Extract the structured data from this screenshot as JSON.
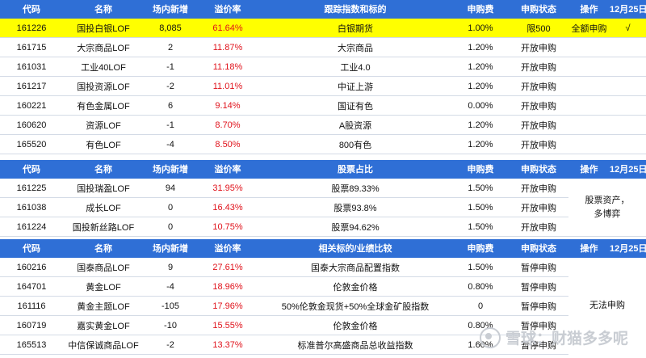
{
  "sections": [
    {
      "headers": [
        "代码",
        "名称",
        "场内新增",
        "溢价率",
        "跟踪指数和标的",
        "申购费",
        "申购状态",
        "操作",
        "12月25日"
      ],
      "rows": [
        {
          "code": "161226",
          "name": "国投白银LOF",
          "add": "8,085",
          "premium": "61.64%",
          "track": "白银期货",
          "fee": "1.00%",
          "status": "限500",
          "op": "全额申购",
          "d25": "√"
        },
        {
          "code": "161715",
          "name": "大宗商品LOF",
          "add": "2",
          "premium": "11.87%",
          "track": "大宗商品",
          "fee": "1.20%",
          "status": "开放申购",
          "op": "",
          "d25": ""
        },
        {
          "code": "161031",
          "name": "工业40LOF",
          "add": "-1",
          "premium": "11.18%",
          "track": "工业4.0",
          "fee": "1.20%",
          "status": "开放申购",
          "op": "",
          "d25": ""
        },
        {
          "code": "161217",
          "name": "国投资源LOF",
          "add": "-2",
          "premium": "11.01%",
          "track": "中证上游",
          "fee": "1.20%",
          "status": "开放申购",
          "op": "",
          "d25": ""
        },
        {
          "code": "160221",
          "name": "有色金属LOF",
          "add": "6",
          "premium": "9.14%",
          "track": "国证有色",
          "fee": "0.00%",
          "status": "开放申购",
          "op": "",
          "d25": ""
        },
        {
          "code": "160620",
          "name": "资源LOF",
          "add": "-1",
          "premium": "8.70%",
          "track": "A股资源",
          "fee": "1.20%",
          "status": "开放申购",
          "op": "",
          "d25": ""
        },
        {
          "code": "165520",
          "name": "有色LOF",
          "add": "-4",
          "premium": "8.50%",
          "track": "800有色",
          "fee": "1.20%",
          "status": "开放申购",
          "op": "",
          "d25": ""
        }
      ]
    },
    {
      "headers": [
        "代码",
        "名称",
        "场内新增",
        "溢价率",
        "股票占比",
        "申购费",
        "申购状态",
        "操作",
        "12月25日"
      ],
      "note": "股票资产，多博弈",
      "rows": [
        {
          "code": "161225",
          "name": "国投瑞盈LOF",
          "add": "94",
          "premium": "31.95%",
          "track": "股票89.33%",
          "fee": "1.50%",
          "status": "开放申购"
        },
        {
          "code": "161038",
          "name": "成长LOF",
          "add": "0",
          "premium": "16.43%",
          "track": "股票93.8%",
          "fee": "1.50%",
          "status": "开放申购"
        },
        {
          "code": "161224",
          "name": "国投新丝路LOF",
          "add": "0",
          "premium": "10.75%",
          "track": "股票94.62%",
          "fee": "1.50%",
          "status": "开放申购"
        }
      ]
    },
    {
      "headers": [
        "代码",
        "名称",
        "场内新增",
        "溢价率",
        "相关标的/业绩比较",
        "申购费",
        "申购状态",
        "操作",
        "12月25日"
      ],
      "note": "无法申购",
      "rows": [
        {
          "code": "160216",
          "name": "国泰商品LOF",
          "add": "9",
          "premium": "27.61%",
          "track": "国泰大宗商品配置指数",
          "fee": "1.50%",
          "status": "暂停申购"
        },
        {
          "code": "164701",
          "name": "黄金LOF",
          "add": "-4",
          "premium": "18.96%",
          "track": "伦敦金价格",
          "fee": "0.80%",
          "status": "暂停申购"
        },
        {
          "code": "161116",
          "name": "黄金主题LOF",
          "add": "-105",
          "premium": "17.96%",
          "track": "50%伦敦金现货+50%全球金矿股指数",
          "fee": "0",
          "status": "暂停申购"
        },
        {
          "code": "160719",
          "name": "嘉实黄金LOF",
          "add": "-10",
          "premium": "15.55%",
          "track": "伦敦金价格",
          "fee": "0.80%",
          "status": "暂停申购"
        },
        {
          "code": "165513",
          "name": "中信保诚商品LOF",
          "add": "-2",
          "premium": "13.37%",
          "track": "标准普尔高盛商品总收益指数",
          "fee": "1.60%",
          "status": "暂停申购"
        }
      ]
    }
  ],
  "watermark": "雪球：财猫多多呢"
}
